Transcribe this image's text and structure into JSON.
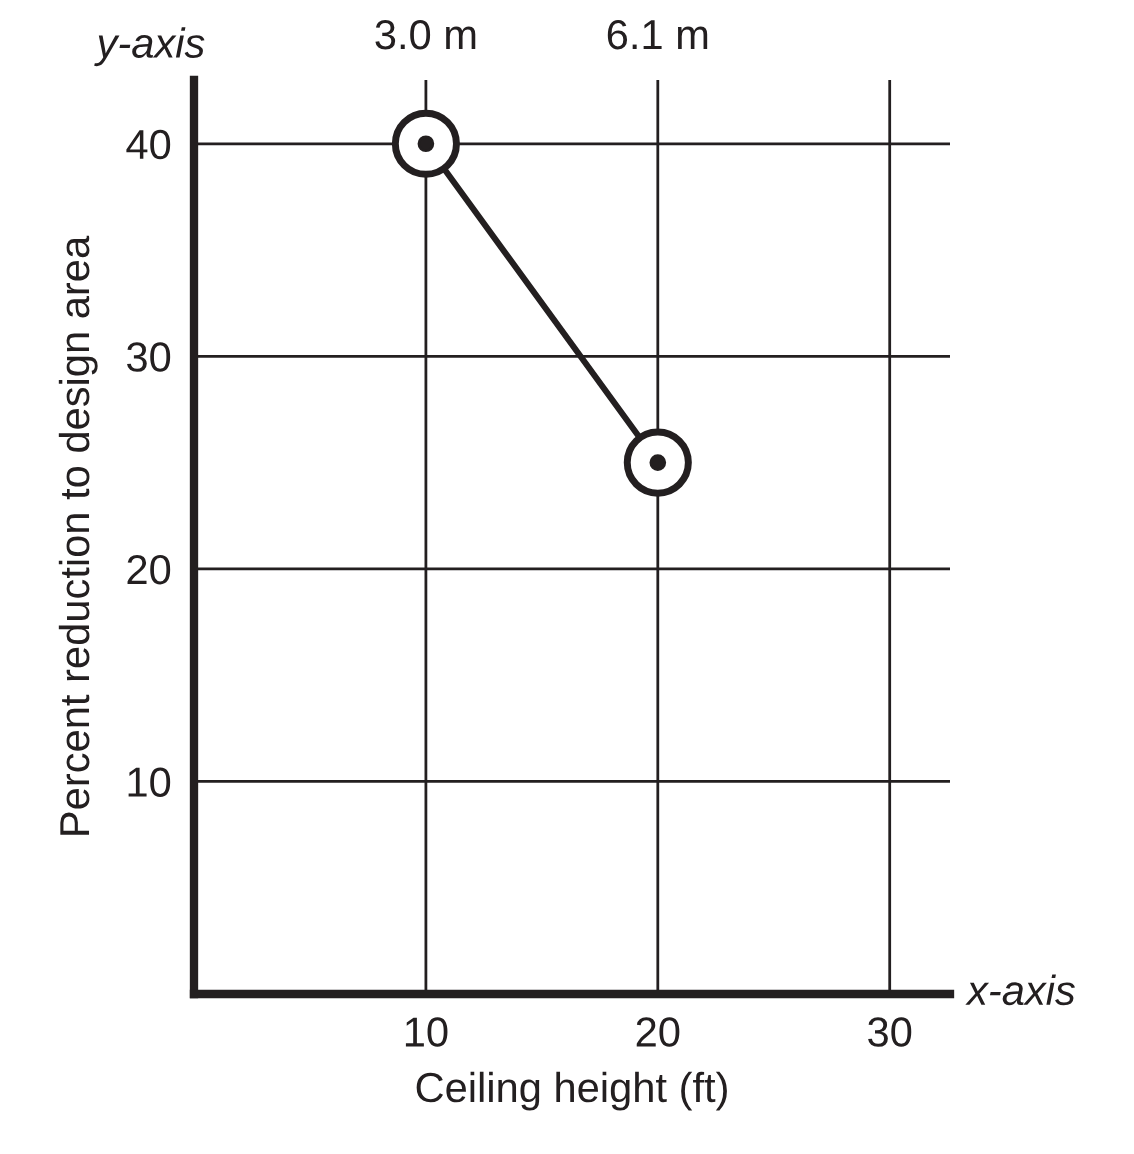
{
  "chart_data": {
    "type": "line",
    "xlabel": "Ceiling height (ft)",
    "ylabel": "Percent reduction to design area",
    "x": [
      10,
      20
    ],
    "series": [
      {
        "color": "#231f20",
        "values": [
          40,
          25
        ]
      }
    ],
    "xlim": [
      0,
      32.6
    ],
    "xticks": [
      10,
      20,
      30
    ],
    "x2lim": [
      3.0,
      6.1
    ],
    "x2ticks": [
      {
        "value": 3.0,
        "label": "3.0 m"
      },
      {
        "value": 6.1,
        "label": "6.1 m"
      }
    ],
    "ylim": [
      0,
      43
    ],
    "yticks": [
      10,
      20,
      30,
      40
    ],
    "grid": true,
    "marker": "circle",
    "line_style": "solid",
    "annotations": [
      "y-axis",
      "x-axis"
    ]
  }
}
